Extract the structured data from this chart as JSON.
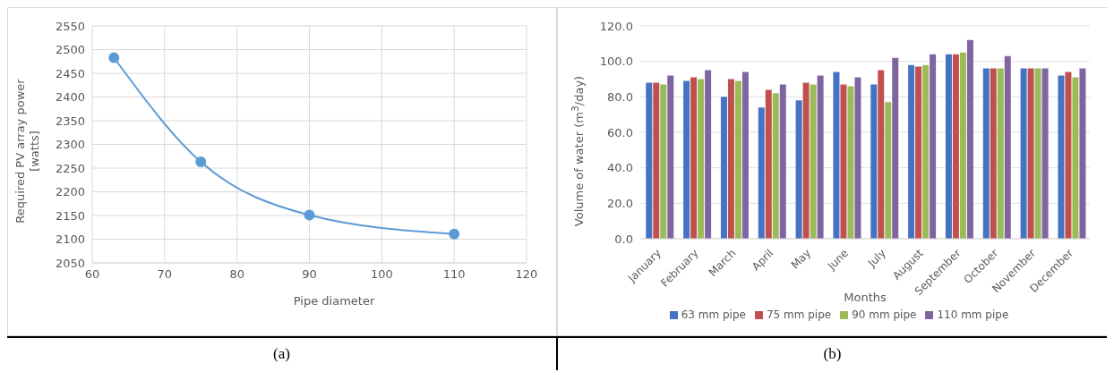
{
  "chart_data": [
    {
      "type": "line",
      "xlabel": "Pipe diameter",
      "ylabel": "Required PV array power [watts]",
      "annotations": [
        "(a)"
      ],
      "x": [
        63,
        75,
        90,
        110
      ],
      "series": [
        {
          "color": "#5b9bd5",
          "values": [
            2483,
            2263,
            2151,
            2111
          ]
        }
      ],
      "xlim": [
        60,
        120
      ],
      "xticks": [
        60,
        70,
        80,
        90,
        100,
        110,
        120
      ],
      "ylim": [
        2050,
        2550
      ],
      "yticks": [
        2050,
        2100,
        2150,
        2200,
        2250,
        2300,
        2350,
        2400,
        2450,
        2500,
        2550
      ],
      "grid": true,
      "marker": "circle"
    },
    {
      "type": "bar",
      "xlabel": "Months",
      "ylabel": "Volume of water (m$^{3}$/day)",
      "annotations": [
        "(b)"
      ],
      "categories": [
        "January",
        "February",
        "March",
        "April",
        "May",
        "June",
        "July",
        "August",
        "September",
        "October",
        "November",
        "December"
      ],
      "series": [
        {
          "name": "63 mm pipe",
          "color": "#4472c4",
          "values": [
            88,
            89,
            80,
            74,
            78,
            94,
            87,
            98,
            104,
            96,
            96,
            92
          ]
        },
        {
          "name": "75 mm pipe",
          "color": "#c0504d",
          "values": [
            88,
            91,
            90,
            84,
            88,
            87,
            95,
            97,
            104,
            96,
            96,
            94
          ]
        },
        {
          "name": "90 mm pipe",
          "color": "#9bbb59",
          "values": [
            87,
            90,
            89,
            82,
            87,
            86,
            77,
            98,
            105,
            96,
            96,
            91
          ]
        },
        {
          "name": "110 mm pipe",
          "color": "#8064a2",
          "values": [
            92,
            95,
            94,
            87,
            92,
            91,
            102,
            104,
            112,
            103,
            96,
            96
          ]
        }
      ],
      "ylim": [
        0,
        120
      ],
      "yticks": [
        {
          "value": 0,
          "label": "0.0"
        },
        {
          "value": 20,
          "label": "20.0"
        },
        {
          "value": 40,
          "label": "40.0"
        },
        {
          "value": 60,
          "label": "60.0"
        },
        {
          "value": 80,
          "label": "80.0"
        },
        {
          "value": 100,
          "label": "100.0"
        },
        {
          "value": 120,
          "label": "120.0"
        }
      ],
      "grid": "y",
      "legend": "bottom"
    }
  ]
}
